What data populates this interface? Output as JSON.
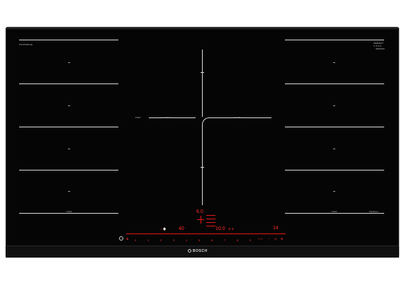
{
  "brand": {
    "logo_text": "BOSCH"
  },
  "top_left_label": "PXV975DV1E",
  "top_right_label": {
    "line1": "PERFECT",
    "line2": "C O O K",
    "line3": "SENSOR"
  },
  "zone_labels": {
    "left_flex": "FLEX",
    "center_left": "powerMove",
    "center_right": "FlexZone",
    "bottom_left": "FLEX",
    "bottom_right_flex": "FLEX",
    "bottom_right_zone": "FlexZone"
  },
  "display": {
    "center_top_value": "6.0",
    "left_value": "40",
    "middle_value": "10.0",
    "right_value": "14"
  },
  "control_numbers": [
    "0",
    "1",
    "2",
    "3",
    "4",
    "5",
    "6",
    "7",
    "8",
    "9"
  ],
  "colors": {
    "glass": "#050505",
    "lines": "#d9d9d9",
    "display_red": "#ff2b2b"
  }
}
